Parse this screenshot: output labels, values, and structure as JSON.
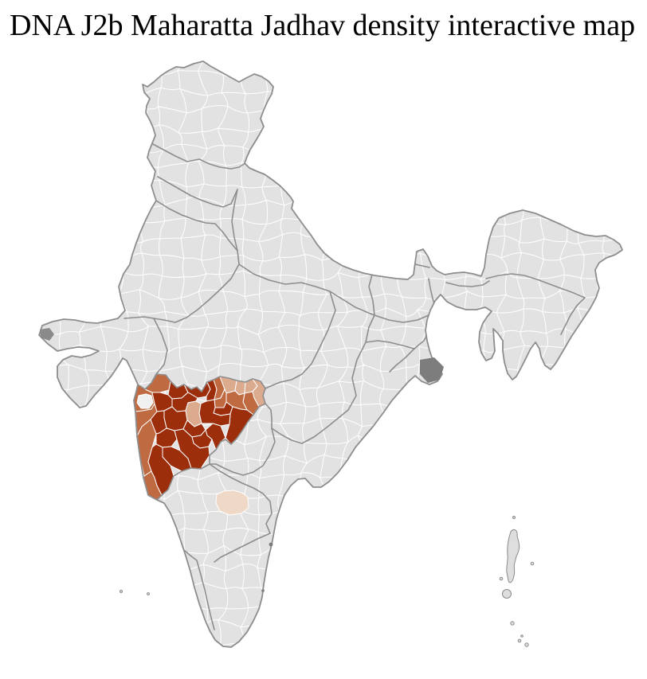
{
  "title": "DNA J2b Maharatta Jadhav density interactive map",
  "map": {
    "description": "India district-level choropleth with density highlighted around the Maharashtra region",
    "background_color": "#ffffff",
    "base_land_color": "#e2e2e2",
    "district_border_color": "#ffffff",
    "state_border_color": "#8d8d8d",
    "coast_border_color": "#8d8d8d",
    "delta_patch_color": "#7d7d7d",
    "density_levels": {
      "high": "#9c2e0c",
      "medium": "#c06a42",
      "low": "#dcab8e",
      "very_low": "#f0d8c6",
      "none": "#f0f0f0"
    },
    "highlighted_districts": [
      {
        "id": "mh-01",
        "level": "medium"
      },
      {
        "id": "mh-02",
        "level": "none"
      },
      {
        "id": "mh-03",
        "level": "medium"
      },
      {
        "id": "mh-04",
        "level": "medium"
      },
      {
        "id": "mh-05",
        "level": "medium"
      },
      {
        "id": "mh-06",
        "level": "medium"
      },
      {
        "id": "mh-07",
        "level": "high"
      },
      {
        "id": "mh-08",
        "level": "high"
      },
      {
        "id": "mh-09",
        "level": "high"
      },
      {
        "id": "mh-10",
        "level": "medium"
      },
      {
        "id": "mh-11",
        "level": "low"
      },
      {
        "id": "mh-12",
        "level": "low"
      },
      {
        "id": "mh-13",
        "level": "low"
      },
      {
        "id": "mh-14",
        "level": "low"
      },
      {
        "id": "mh-15",
        "level": "medium"
      },
      {
        "id": "mh-16",
        "level": "medium"
      },
      {
        "id": "mh-17",
        "level": "medium"
      },
      {
        "id": "mh-18",
        "level": "high"
      },
      {
        "id": "mh-19",
        "level": "high"
      },
      {
        "id": "mh-20",
        "level": "high"
      },
      {
        "id": "mh-21",
        "level": "high"
      },
      {
        "id": "mh-22",
        "level": "low"
      },
      {
        "id": "mh-23",
        "level": "high"
      },
      {
        "id": "mh-24",
        "level": "high"
      },
      {
        "id": "mh-25",
        "level": "high"
      },
      {
        "id": "mh-26",
        "level": "high"
      },
      {
        "id": "mh-27",
        "level": "high"
      },
      {
        "id": "mh-28",
        "level": "high"
      },
      {
        "id": "mh-29",
        "level": "high"
      },
      {
        "id": "mh-30",
        "level": "high"
      },
      {
        "id": "mh-31",
        "level": "high"
      },
      {
        "id": "mh-32",
        "level": "high"
      },
      {
        "id": "ka-01",
        "level": "very_low"
      }
    ]
  }
}
